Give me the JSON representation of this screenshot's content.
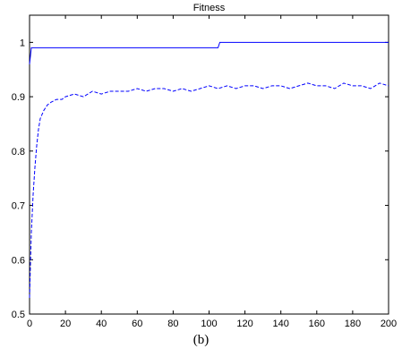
{
  "chart_data": {
    "type": "line",
    "title": "Fitness",
    "xlabel": "",
    "ylabel": "",
    "xlim": [
      0,
      200
    ],
    "ylim": [
      0.5,
      1.05
    ],
    "xticks": [
      0,
      20,
      40,
      60,
      80,
      100,
      120,
      140,
      160,
      180,
      200
    ],
    "yticks": [
      0.5,
      0.6,
      0.7,
      0.8,
      0.9,
      1
    ],
    "ytick_labels": [
      "0.5",
      "0.6",
      "0.7",
      "0.8",
      "0.9",
      "1"
    ],
    "grid": false,
    "series": [
      {
        "style": "solid",
        "color": "#0000ff",
        "x": [
          0,
          1,
          2,
          105,
          106,
          200
        ],
        "y": [
          0.96,
          0.99,
          0.99,
          0.99,
          1.0,
          1.0
        ]
      },
      {
        "style": "dashed",
        "color": "#0000ff",
        "x": [
          0,
          1,
          2,
          3,
          4,
          5,
          6,
          8,
          10,
          12,
          15,
          18,
          20,
          25,
          30,
          35,
          40,
          45,
          50,
          55,
          60,
          65,
          70,
          75,
          80,
          85,
          90,
          95,
          100,
          105,
          110,
          115,
          120,
          125,
          130,
          135,
          140,
          145,
          150,
          155,
          160,
          165,
          170,
          175,
          180,
          185,
          190,
          195,
          200
        ],
        "y": [
          0.53,
          0.65,
          0.72,
          0.77,
          0.81,
          0.84,
          0.86,
          0.875,
          0.885,
          0.89,
          0.895,
          0.895,
          0.9,
          0.905,
          0.9,
          0.91,
          0.905,
          0.91,
          0.91,
          0.91,
          0.915,
          0.91,
          0.915,
          0.915,
          0.91,
          0.915,
          0.91,
          0.915,
          0.92,
          0.915,
          0.92,
          0.915,
          0.92,
          0.92,
          0.915,
          0.92,
          0.92,
          0.915,
          0.92,
          0.925,
          0.92,
          0.92,
          0.915,
          0.925,
          0.92,
          0.92,
          0.915,
          0.925,
          0.92
        ]
      }
    ]
  },
  "caption": "(b)"
}
